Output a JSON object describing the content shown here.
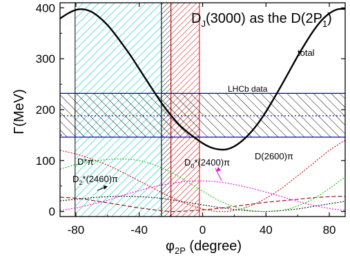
{
  "chart_data": {
    "type": "line",
    "title": "D_J(3000) as the D(2P_1)",
    "title_parts": {
      "d": "D",
      "j": "J",
      "mid": "(3000) as the D(2P",
      "one": "1",
      "close": ")"
    },
    "xlabel": {
      "phi": "φ",
      "sub": "2P",
      "rest": " (degree)"
    },
    "ylabel": "Γ(MeV)",
    "xlim": [
      -90,
      90
    ],
    "ylim": [
      -10,
      410
    ],
    "xticks": [
      -80,
      -40,
      0,
      40,
      80
    ],
    "yticks": [
      0,
      100,
      200,
      300,
      400
    ],
    "grid": false,
    "bands": {
      "lhcb": {
        "label": "LHCb data",
        "central": 188,
        "low": 146,
        "high": 232,
        "color": "#0000cc"
      },
      "cyan": {
        "x0": -80.5,
        "x1": -26,
        "color": "#00c8c8"
      },
      "black": {
        "x0": -26,
        "x1": -20,
        "color": "#000000"
      },
      "red": {
        "x0": -20,
        "x1": -2,
        "color": "#dd0000"
      }
    },
    "series": [
      {
        "name": "total",
        "color": "#000000",
        "dash": "",
        "width": 2.4,
        "x": [
          -90,
          -85,
          -80,
          -75,
          -70,
          -65,
          -60,
          -55,
          -50,
          -45,
          -40,
          -35,
          -30,
          -25,
          -20,
          -15,
          -10,
          -5,
          0,
          5,
          10,
          15,
          20,
          25,
          30,
          35,
          40,
          45,
          50,
          55,
          60,
          65,
          70,
          75,
          80,
          85,
          90
        ],
        "y": [
          379,
          389,
          396,
          397,
          392,
          381,
          366,
          347,
          326,
          304,
          280,
          256,
          232,
          209,
          189,
          171,
          157,
          145,
          134,
          126,
          122,
          122,
          128,
          139,
          154,
          173,
          196,
          222,
          249,
          277,
          305,
          331,
          355,
          375,
          389,
          397,
          398
        ]
      },
      {
        "name": "D*π",
        "color": "#00cc00",
        "dash": "2,2",
        "width": 1.1,
        "x": [
          -90,
          -80,
          -70,
          -60,
          -50,
          -40,
          -30,
          -20,
          -10,
          0,
          10,
          20,
          30,
          40,
          50,
          60,
          70,
          80,
          90
        ],
        "y": [
          83,
          92,
          98,
          102,
          103,
          100,
          91,
          77,
          59,
          40,
          22,
          9,
          2,
          0,
          2,
          11,
          25,
          45,
          68
        ]
      },
      {
        "name": "D_2*(2460)π",
        "color": "#000000",
        "dash": "2,2",
        "width": 1.1,
        "x": [
          -90,
          -80,
          -70,
          -60,
          -50,
          -40,
          -30,
          -20,
          -10,
          0,
          10,
          20,
          30,
          40,
          50,
          60,
          70,
          80,
          90
        ],
        "y": [
          21,
          24,
          27,
          29,
          30,
          29,
          27,
          23,
          18,
          13,
          8,
          4,
          1,
          0,
          2,
          5,
          10,
          15,
          20
        ]
      },
      {
        "name": "D_0*(2400)π",
        "color": "#ee00ee",
        "dash": "2,2",
        "width": 1.1,
        "x": [
          -90,
          -80,
          -70,
          -60,
          -50,
          -40,
          -30,
          -20,
          -10,
          0,
          10,
          20,
          30,
          40,
          50,
          60,
          70,
          80,
          90
        ],
        "y": [
          2,
          7,
          14,
          22,
          32,
          41,
          49,
          55,
          59,
          60,
          58,
          53,
          46,
          38,
          29,
          20,
          12,
          6,
          2
        ]
      },
      {
        "name": "D(2600)π",
        "color": "#dd0000",
        "dash": "2,2",
        "width": 1.1,
        "x": [
          -90,
          -80,
          -70,
          -60,
          -50,
          -40,
          -30,
          -20,
          -10,
          0,
          10,
          20,
          30,
          40,
          50,
          60,
          70,
          80,
          90
        ],
        "y": [
          120,
          113,
          103,
          91,
          76,
          60,
          44,
          28,
          15,
          5,
          0,
          2,
          11,
          26,
          46,
          70,
          95,
          120,
          140
        ]
      },
      {
        "name": "",
        "color": "#8b0000",
        "dash": "6,3",
        "width": 1.1,
        "x": [
          -90,
          -80,
          -70,
          -60,
          -50,
          -40,
          -30,
          -20,
          -10,
          0,
          10,
          20,
          30,
          40,
          50,
          60,
          70,
          80,
          90
        ],
        "y": [
          28,
          26,
          22,
          17,
          12,
          7,
          3,
          0,
          1,
          3,
          6,
          10,
          14,
          18,
          21,
          24,
          27,
          29,
          30
        ]
      }
    ],
    "labels": {
      "total": "total",
      "dstar_pi": "D*π",
      "d2": "D",
      "d2_sub": "2",
      "d2_rest": "*(2460)π",
      "d0": "D",
      "d0_sub": "0",
      "d0_rest": "*(2400)π",
      "d2600": "D(2600)π"
    }
  }
}
